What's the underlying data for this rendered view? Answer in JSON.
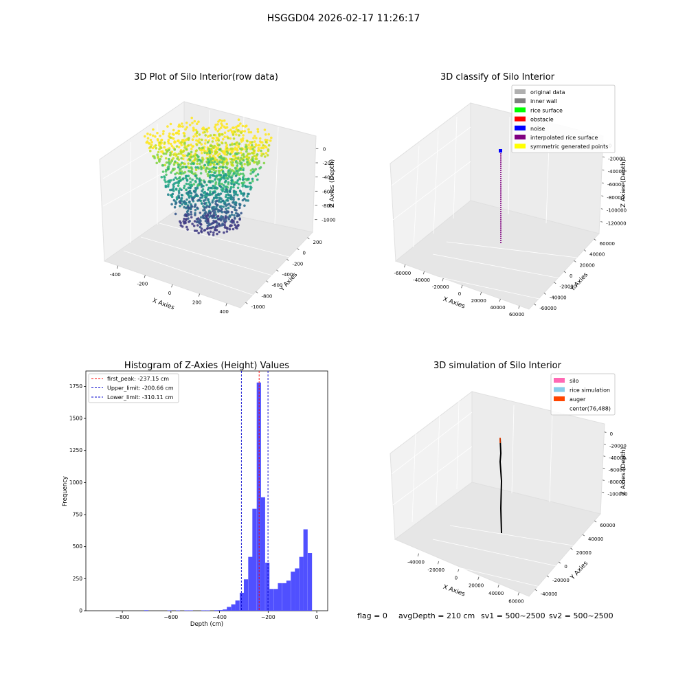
{
  "suptitle": "HSGGD04 2026-02-17 11:26:17",
  "footer": {
    "flag": "flag = 0",
    "avg_depth": "avgDepth = 210 cm",
    "sv1": "sv1 = 500~2500",
    "sv2": "sv2 = 500~2500"
  },
  "colors": {
    "hist_bar": "#5050ff",
    "peak_line": "#ff0000",
    "limit_line": "#0000cc",
    "pane": "#f2f2f2",
    "grid": "#dddddd"
  },
  "chart_data": [
    {
      "type": "scatter",
      "projection": "3d",
      "title": "3D Plot of Silo Interior(row data)",
      "xlabel": "X Axies",
      "ylabel": "Y Axies",
      "zlabel": "Z Axies (Depth)",
      "x_ticks": [
        "-400",
        "-200",
        "0",
        "200",
        "400"
      ],
      "y_ticks": [
        "-1000",
        "-800",
        "-600",
        "-400",
        "-200",
        "0",
        "200"
      ],
      "z_ticks": [
        "0",
        "-200",
        "-400",
        "-600",
        "-800",
        "-1000"
      ],
      "xlim": [
        -500,
        500
      ],
      "ylim": [
        -1050,
        300
      ],
      "zlim": [
        -1200,
        50
      ],
      "colormap": "viridis (by depth)",
      "grid": true
    },
    {
      "type": "scatter",
      "projection": "3d",
      "title": "3D classify of Silo Interior",
      "xlabel": "X Axies",
      "ylabel": "Y Axies",
      "zlabel": "Z Axies (Depth)",
      "x_ticks": [
        "-60000",
        "-40000",
        "-20000",
        "0",
        "20000",
        "40000",
        "60000"
      ],
      "y_ticks": [
        "-60000",
        "-40000",
        "-20000",
        "0",
        "20000",
        "40000",
        "60000"
      ],
      "z_ticks": [
        "0",
        "-20000",
        "-40000",
        "-60000",
        "-80000",
        "-100000",
        "-120000"
      ],
      "legend_position": "top-right",
      "legend": [
        {
          "label": "original data",
          "color": "#b0b0b0"
        },
        {
          "label": "inner wall",
          "color": "#808080"
        },
        {
          "label": "rice surface",
          "color": "#00ff00"
        },
        {
          "label": "obstacle",
          "color": "#ff0000"
        },
        {
          "label": "noise",
          "color": "#0000ff"
        },
        {
          "label": "interpolated rice surface",
          "color": "#800080"
        },
        {
          "label": "symmetric generated points",
          "color": "#ffff00"
        }
      ],
      "grid": true
    },
    {
      "type": "bar",
      "title": "Histogram of Z-Axies (Height) Values",
      "xlabel": "Depth (cm)",
      "ylabel": "Frequency",
      "xlim": [
        -950,
        45
      ],
      "ylim": [
        0,
        1870
      ],
      "x_ticks": [
        -800,
        -600,
        -400,
        -200,
        0
      ],
      "y_ticks": [
        0,
        250,
        500,
        750,
        1000,
        1250,
        1500,
        1750
      ],
      "bin_width": 17.5,
      "bins": [
        {
          "start": -710,
          "value": 4
        },
        {
          "start": -615,
          "value": 3
        },
        {
          "start": -580,
          "value": 3
        },
        {
          "start": -545,
          "value": 3
        },
        {
          "start": -527,
          "value": 3
        },
        {
          "start": -475,
          "value": 3
        },
        {
          "start": -457,
          "value": 3
        },
        {
          "start": -422,
          "value": 4
        },
        {
          "start": -405,
          "value": 5
        },
        {
          "start": -387,
          "value": 10
        },
        {
          "start": -370,
          "value": 30
        },
        {
          "start": -352,
          "value": 50
        },
        {
          "start": -335,
          "value": 80
        },
        {
          "start": -317,
          "value": 140
        },
        {
          "start": -300,
          "value": 245
        },
        {
          "start": -282,
          "value": 420
        },
        {
          "start": -265,
          "value": 795
        },
        {
          "start": -247,
          "value": 1780
        },
        {
          "start": -230,
          "value": 885
        },
        {
          "start": -212,
          "value": 375
        },
        {
          "start": -195,
          "value": 170
        },
        {
          "start": -177,
          "value": 170
        },
        {
          "start": -160,
          "value": 215
        },
        {
          "start": -142,
          "value": 215
        },
        {
          "start": -125,
          "value": 235
        },
        {
          "start": -107,
          "value": 305
        },
        {
          "start": -90,
          "value": 330
        },
        {
          "start": -72,
          "value": 420
        },
        {
          "start": -55,
          "value": 635
        },
        {
          "start": -37,
          "value": 450
        }
      ],
      "vlines": [
        {
          "label": "first_peak: -237.15 cm",
          "x": -237.15,
          "color": "#ff0000"
        },
        {
          "label": "Upper_limit: -200.66 cm",
          "x": -200.66,
          "color": "#0000cc"
        },
        {
          "label": "Lower_limit: -310.11 cm",
          "x": -310.11,
          "color": "#0000cc"
        }
      ],
      "legend_position": "top-left"
    },
    {
      "type": "line",
      "projection": "3d",
      "title": "3D simulation of Silo Interior",
      "xlabel": "X Axies",
      "ylabel": "Y Axies",
      "zlabel": "Z Axies (Depth)",
      "x_ticks": [
        "-40000",
        "-20000",
        "0",
        "20000",
        "40000",
        "60000"
      ],
      "y_ticks": [
        "-40000",
        "-20000",
        "0",
        "20000",
        "40000",
        "60000"
      ],
      "z_ticks": [
        "0",
        "-20000",
        "-40000",
        "-60000",
        "-80000",
        "-100000"
      ],
      "legend_position": "top-right",
      "legend": [
        {
          "label": "silo",
          "color": "#ff69b4"
        },
        {
          "label": "rice simulation",
          "color": "#87ceeb"
        },
        {
          "label": "auger",
          "color": "#ff4500"
        },
        {
          "label": "center(76,488)",
          "color": "#ffffff"
        }
      ],
      "grid": true
    }
  ]
}
